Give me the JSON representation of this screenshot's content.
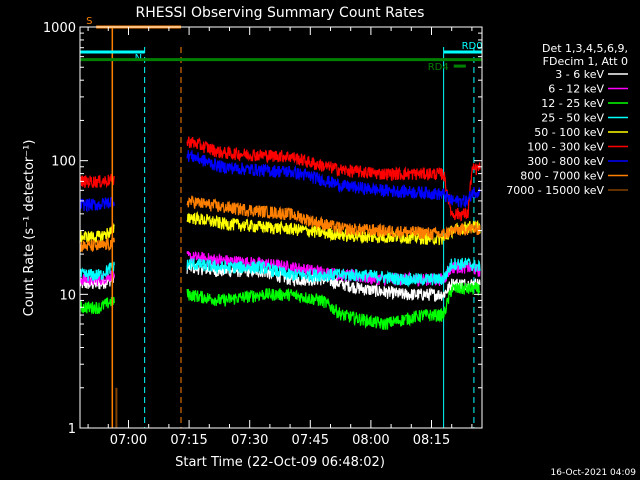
{
  "chart_data": {
    "type": "line",
    "title": "RHESSI Observing Summary Count Rates",
    "xlabel": "Start Time (22-Oct-09 06:48:02)",
    "ylabel": "Count Rate (s⁻¹ detector⁻¹)",
    "yscale": "log",
    "ylim": [
      1,
      1000
    ],
    "y_ticks": [
      {
        "v": 1,
        "label": "1"
      },
      {
        "v": 10,
        "label": "10"
      },
      {
        "v": 100,
        "label": "100"
      },
      {
        "v": 1000,
        "label": "1000"
      }
    ],
    "xlim_minutes": [
      0,
      99.5
    ],
    "x_ticks": [
      {
        "label": "07:00",
        "m": 12
      },
      {
        "label": "07:15",
        "m": 27
      },
      {
        "label": "07:30",
        "m": 42
      },
      {
        "label": "07:45",
        "m": 57
      },
      {
        "label": "08:00",
        "m": 72
      },
      {
        "label": "08:15",
        "m": 87
      }
    ],
    "legend_header": [
      "Det 1,3,4,5,6,9,",
      "FDecim 1, Att 0"
    ],
    "legend_position": "right",
    "timestamp": "16-Oct-2021 04:09",
    "flags": [
      {
        "label": "S",
        "color": "#ff8000",
        "start_min": 4,
        "end_min": 25,
        "y": 1000
      },
      {
        "label": "N",
        "color": "#00ffff",
        "start_min": 0,
        "end_min": 16,
        "y": 650
      },
      {
        "label": "RD0",
        "color": "#008000",
        "start_min": 0,
        "end_min": 99.5,
        "y": 570
      },
      {
        "label": "RD0",
        "color": "#00ffff",
        "start_min": 90,
        "end_min": 99.5,
        "y": 650
      },
      {
        "label": "RD4",
        "color": "#008000",
        "start_min": 92.5,
        "end_min": 95.5,
        "y": 510
      }
    ],
    "vlines": [
      {
        "min": 16,
        "color": "#00ffff",
        "style": "dashed"
      },
      {
        "min": 25,
        "color": "#ff8000",
        "style": "dashed"
      },
      {
        "min": 97.5,
        "color": "#00ffff",
        "style": "dashed"
      },
      {
        "min": 90,
        "color": "#00ffff",
        "style": "solid"
      },
      {
        "min": 8,
        "color": "#ff8000",
        "style": "solid"
      },
      {
        "min": 0,
        "color": "#00ffff",
        "style": "solid"
      }
    ],
    "series": [
      {
        "name": "3 - 6 keV",
        "color": "#ffffff",
        "points": [
          [
            0,
            12
          ],
          [
            5,
            12
          ],
          [
            8,
            13
          ],
          [
            27,
            16
          ],
          [
            35,
            15
          ],
          [
            45,
            15
          ],
          [
            52,
            13
          ],
          [
            60,
            13
          ],
          [
            70,
            11
          ],
          [
            80,
            10
          ],
          [
            90,
            10
          ],
          [
            92,
            12
          ],
          [
            96,
            12
          ],
          [
            99,
            12
          ]
        ]
      },
      {
        "name": "6 - 12 keV",
        "color": "#ff00ff",
        "points": [
          [
            0,
            13
          ],
          [
            5,
            13
          ],
          [
            8,
            14
          ],
          [
            27,
            19
          ],
          [
            35,
            18
          ],
          [
            45,
            17
          ],
          [
            52,
            16
          ],
          [
            58,
            15
          ],
          [
            65,
            14
          ],
          [
            75,
            13
          ],
          [
            85,
            13
          ],
          [
            90,
            13
          ],
          [
            92,
            16
          ],
          [
            96,
            16
          ],
          [
            99,
            15
          ]
        ]
      },
      {
        "name": "12 - 25 keV",
        "color": "#00ff00",
        "points": [
          [
            0,
            8
          ],
          [
            5,
            8
          ],
          [
            8,
            9
          ],
          [
            27,
            10
          ],
          [
            35,
            9
          ],
          [
            45,
            10
          ],
          [
            52,
            10
          ],
          [
            60,
            9
          ],
          [
            65,
            7
          ],
          [
            75,
            6
          ],
          [
            85,
            7
          ],
          [
            90,
            7
          ],
          [
            92,
            11
          ],
          [
            96,
            11
          ],
          [
            99,
            11
          ]
        ]
      },
      {
        "name": "25 - 50 keV",
        "color": "#00ffff",
        "points": [
          [
            0,
            14
          ],
          [
            5,
            14
          ],
          [
            8,
            16
          ],
          [
            27,
            17
          ],
          [
            35,
            16
          ],
          [
            45,
            16
          ],
          [
            52,
            14
          ],
          [
            60,
            14
          ],
          [
            70,
            14
          ],
          [
            80,
            13
          ],
          [
            90,
            13
          ],
          [
            92,
            17
          ],
          [
            96,
            17
          ],
          [
            99,
            16
          ]
        ]
      },
      {
        "name": "50 - 100 keV",
        "color": "#ffff00",
        "points": [
          [
            0,
            27
          ],
          [
            5,
            27
          ],
          [
            8,
            30
          ],
          [
            27,
            38
          ],
          [
            35,
            34
          ],
          [
            45,
            32
          ],
          [
            52,
            31
          ],
          [
            60,
            29
          ],
          [
            70,
            27
          ],
          [
            80,
            27
          ],
          [
            90,
            26
          ],
          [
            92,
            30
          ],
          [
            96,
            32
          ],
          [
            99,
            32
          ]
        ]
      },
      {
        "name": "100 - 300 keV",
        "color": "#ff0000",
        "points": [
          [
            0,
            70
          ],
          [
            5,
            70
          ],
          [
            8,
            72
          ],
          [
            27,
            140
          ],
          [
            35,
            115
          ],
          [
            45,
            110
          ],
          [
            52,
            108
          ],
          [
            58,
            95
          ],
          [
            65,
            85
          ],
          [
            75,
            80
          ],
          [
            85,
            80
          ],
          [
            90,
            80
          ],
          [
            92,
            40
          ],
          [
            96,
            40
          ],
          [
            97,
            85
          ],
          [
            99,
            88
          ]
        ]
      },
      {
        "name": "300 - 800 keV",
        "color": "#0000ff",
        "points": [
          [
            0,
            47
          ],
          [
            5,
            47
          ],
          [
            8,
            50
          ],
          [
            27,
            110
          ],
          [
            35,
            90
          ],
          [
            45,
            85
          ],
          [
            52,
            83
          ],
          [
            58,
            75
          ],
          [
            65,
            65
          ],
          [
            75,
            60
          ],
          [
            85,
            58
          ],
          [
            90,
            56
          ],
          [
            92,
            50
          ],
          [
            96,
            50
          ],
          [
            97,
            58
          ],
          [
            99,
            60
          ]
        ]
      },
      {
        "name": "800 - 7000 keV",
        "color": "#ff8000",
        "points": [
          [
            0,
            23
          ],
          [
            5,
            23
          ],
          [
            8,
            24
          ],
          [
            27,
            50
          ],
          [
            35,
            45
          ],
          [
            45,
            42
          ],
          [
            52,
            40
          ],
          [
            58,
            35
          ],
          [
            65,
            31
          ],
          [
            75,
            30
          ],
          [
            85,
            29
          ],
          [
            90,
            28
          ],
          [
            92,
            30
          ],
          [
            96,
            31
          ],
          [
            99,
            31
          ]
        ]
      },
      {
        "name": "7000 - 15000 keV",
        "color": "#804000",
        "points": [
          [
            9,
            1
          ],
          [
            9,
            2
          ]
        ]
      }
    ]
  }
}
